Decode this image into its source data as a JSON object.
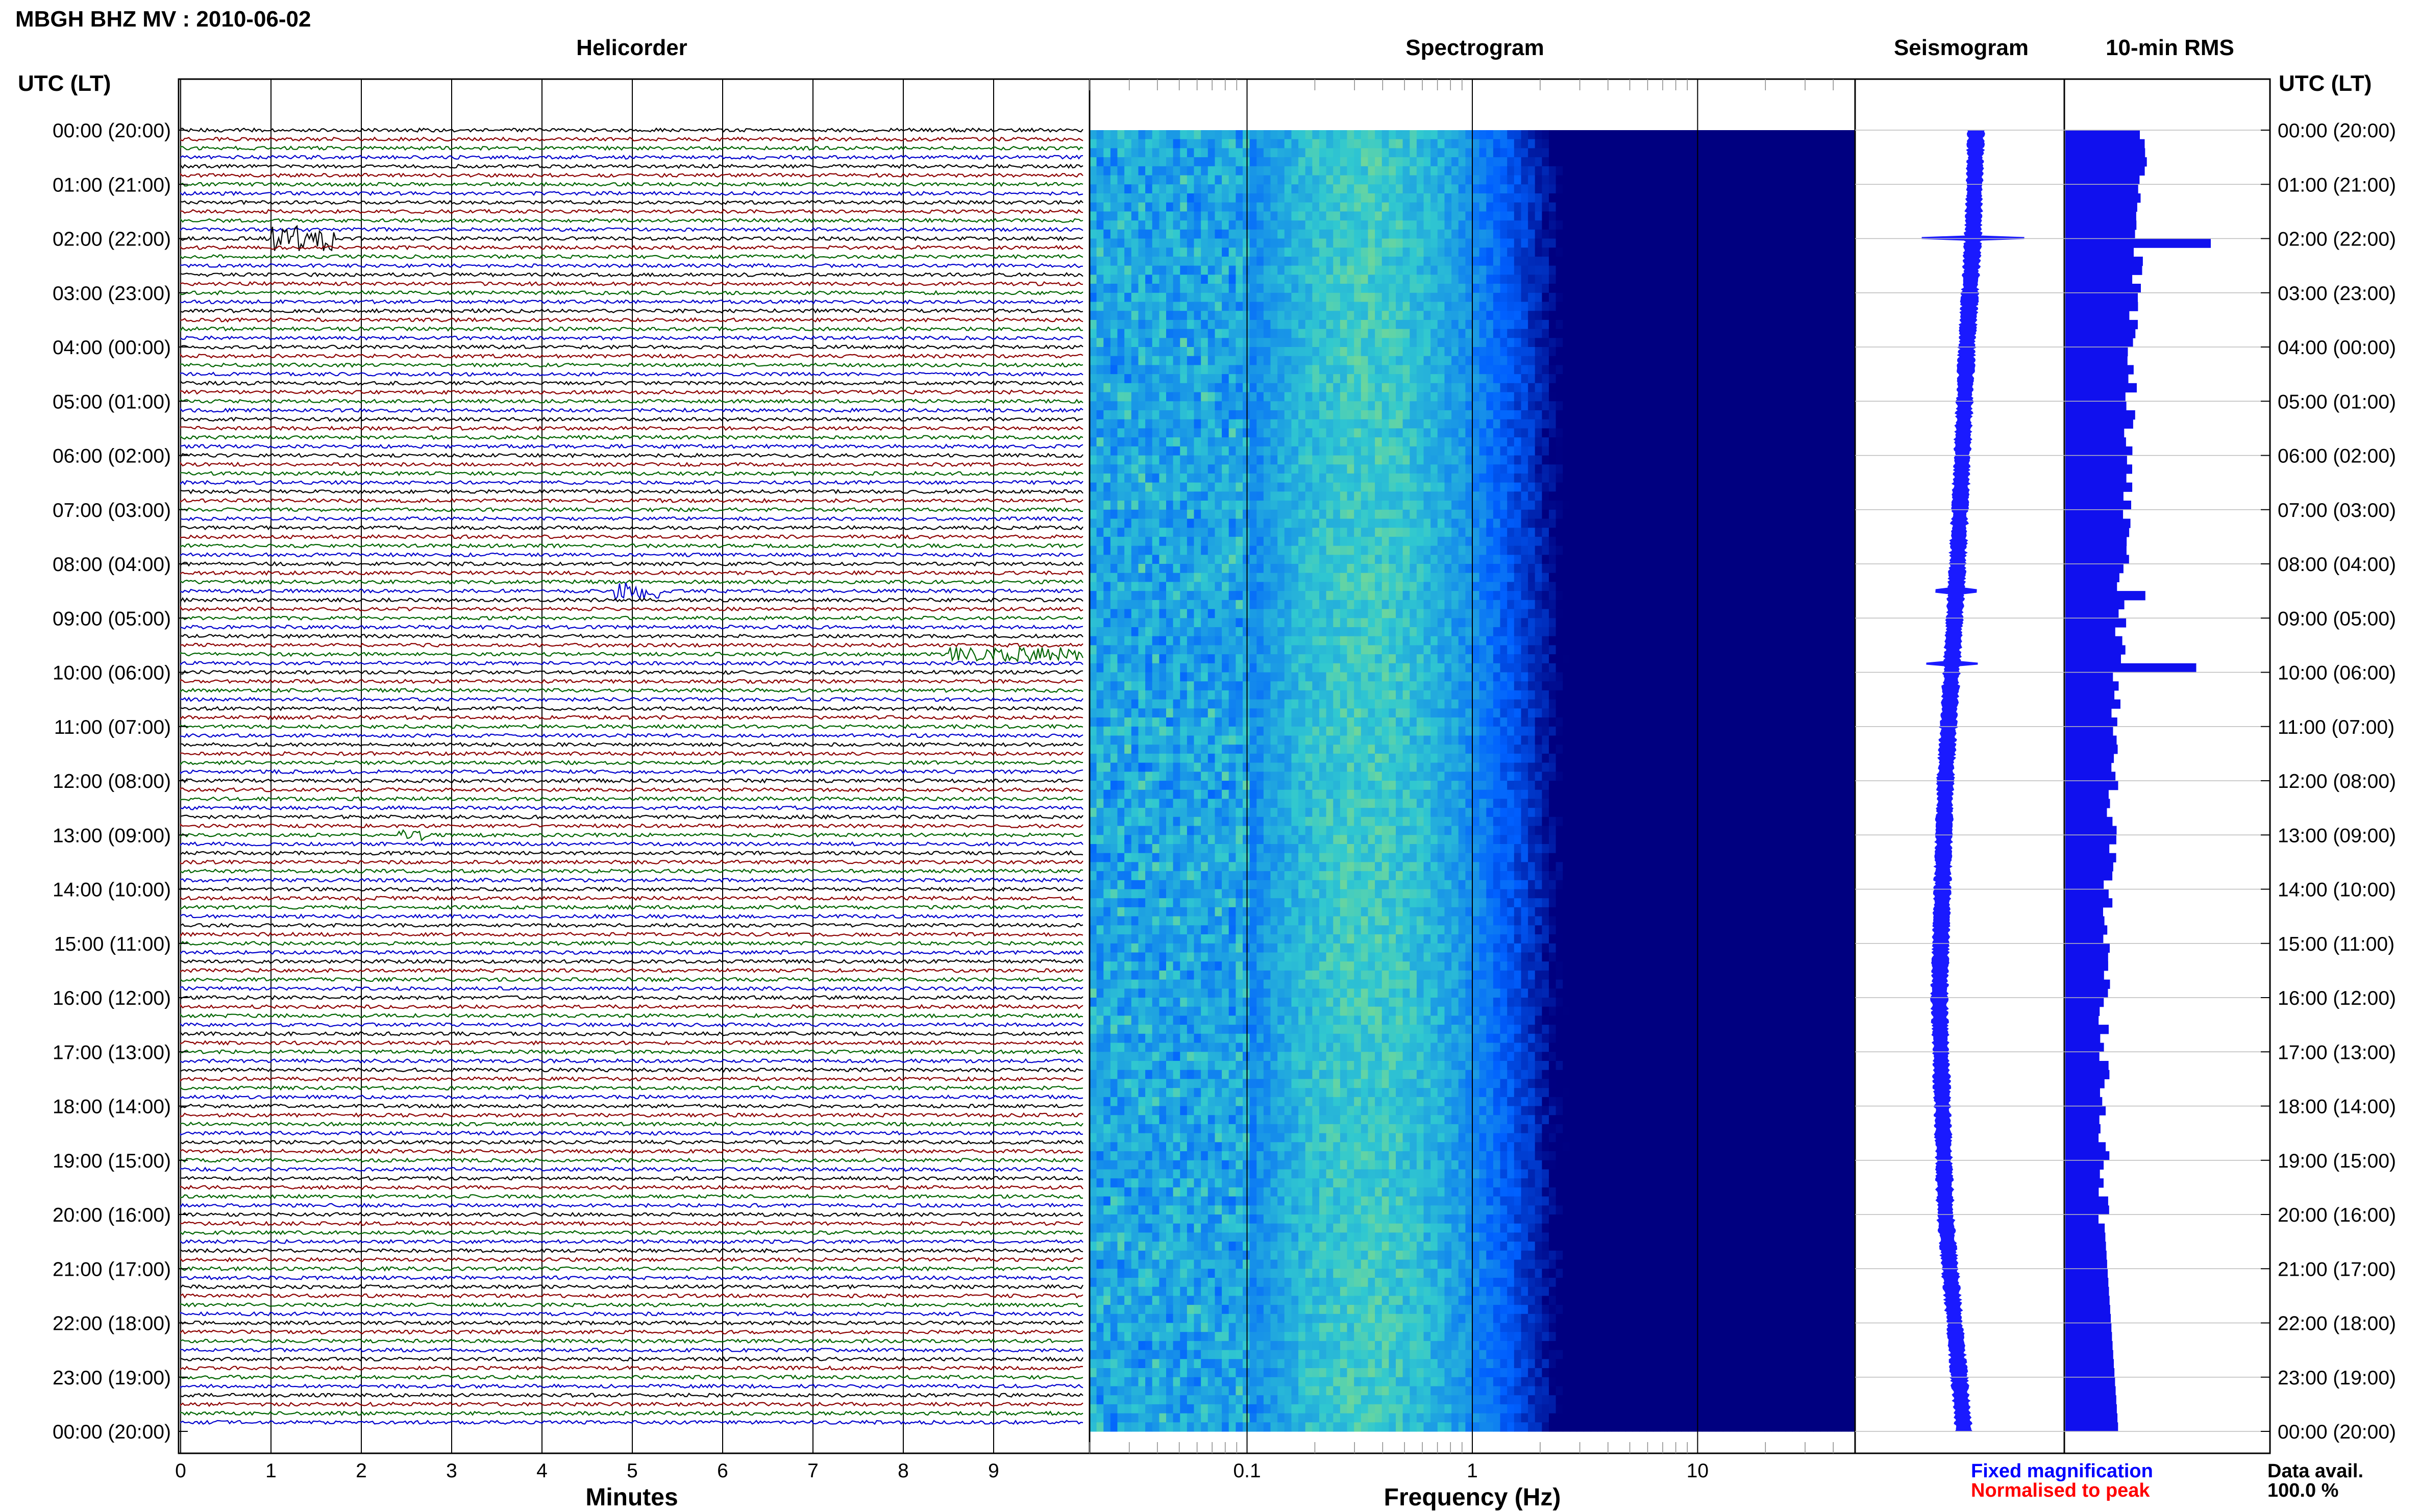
{
  "header": {
    "station_title": "MBGH BHZ MV : 2010-06-02",
    "utc_left": "UTC (LT)",
    "utc_right": "UTC (LT)"
  },
  "panels": {
    "helicorder": "Helicorder",
    "spectrogram": "Spectrogram",
    "seismogram": "Seismogram",
    "rms": "10-min RMS"
  },
  "legend": {
    "fixed": "Fixed magnification",
    "normalised": "Normalised to peak",
    "data_avail_label": "Data avail.",
    "data_avail_value": "100.0 %"
  },
  "colors": {
    "trace_cycle": [
      "#000000",
      "#8b0000",
      "#006400",
      "#0000cc"
    ],
    "fixed": "#0000ff",
    "normalised": "#ff0000",
    "rms_bar": "#1010ee",
    "seismogram": "#1a1aff",
    "spec_low": "#000080",
    "spec_mid": "#0060ff",
    "spec_cyan": "#30c8d0",
    "spec_high": "#d8f040"
  },
  "chart_data": [
    {
      "type": "line",
      "title": "Helicorder",
      "xlabel": "Minutes",
      "x_ticks": [
        "0",
        "1",
        "2",
        "3",
        "4",
        "5",
        "6",
        "7",
        "8",
        "9"
      ],
      "xlim": [
        0,
        10
      ],
      "y_ticks": [
        "00:00 (20:00)",
        "01:00 (21:00)",
        "02:00 (22:00)",
        "03:00 (23:00)",
        "04:00 (00:00)",
        "05:00 (01:00)",
        "06:00 (02:00)",
        "07:00 (03:00)",
        "08:00 (04:00)",
        "09:00 (05:00)",
        "10:00 (06:00)",
        "11:00 (07:00)",
        "12:00 (08:00)",
        "13:00 (09:00)",
        "14:00 (10:00)",
        "15:00 (11:00)",
        "16:00 (12:00)",
        "17:00 (13:00)",
        "18:00 (14:00)",
        "19:00 (15:00)",
        "20:00 (16:00)",
        "21:00 (17:00)",
        "22:00 (18:00)",
        "23:00 (19:00)",
        "00:00 (20:00)"
      ],
      "traces_per_hour": 6,
      "events": [
        {
          "hour": 2.0,
          "minute": 1.0,
          "duration_min": 0.7,
          "amp": 3.5
        },
        {
          "hour": 8.5,
          "minute": 4.8,
          "duration_min": 0.5,
          "amp": 2.5
        },
        {
          "hour": 9.67,
          "minute": 8.5,
          "duration_min": 1.5,
          "amp": 2.0
        },
        {
          "hour": 13.0,
          "minute": 2.4,
          "duration_min": 0.3,
          "amp": 1.5
        }
      ]
    },
    {
      "type": "heatmap",
      "title": "Spectrogram",
      "xlabel": "Frequency (Hz)",
      "x_scale": "log",
      "x_ticks": [
        "0.1",
        "1",
        "10"
      ],
      "xlim": [
        0.02,
        50
      ],
      "ylim_hours": [
        0,
        24
      ],
      "notes": "Strongest energy 0.2-0.5 Hz (yellow-green); lower power above ~2 Hz (blue)"
    },
    {
      "type": "line",
      "title": "Seismogram",
      "description_values": {
        "hours": [
          0,
          2,
          4,
          8,
          12,
          16,
          20,
          24
        ],
        "offset": [
          0.6,
          0.55,
          0.45,
          0.3,
          0.1,
          0.0,
          0.1,
          0.4
        ]
      }
    },
    {
      "type": "bar",
      "title": "10-min RMS",
      "bins_per_hour": 6,
      "spikes": [
        {
          "hour": 2.0,
          "value": 1.0
        },
        {
          "hour": 9.83,
          "value": 0.9
        },
        {
          "hour": 8.5,
          "value": 0.55
        }
      ],
      "baseline_range": [
        0.4,
        0.8
      ]
    }
  ]
}
